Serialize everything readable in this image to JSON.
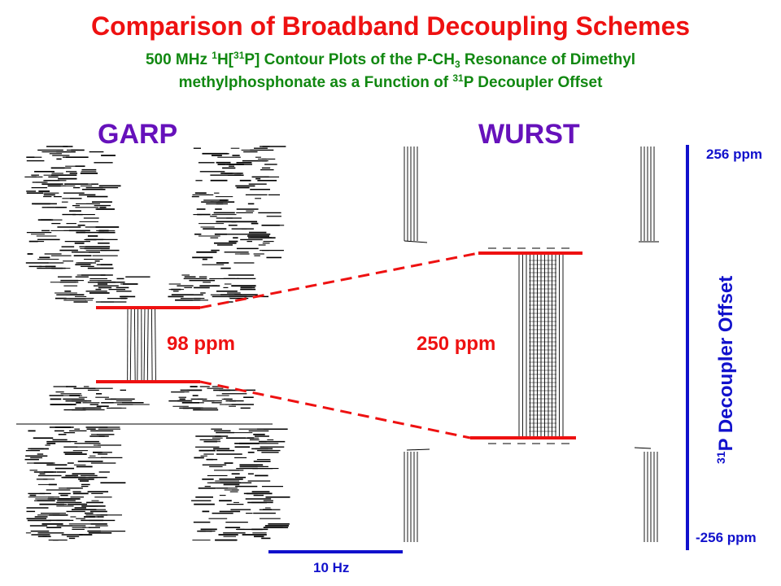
{
  "title": "Comparison of Broadband Decoupling Schemes",
  "subtitle": {
    "line1_pre": "500 MHz ",
    "line1_sup1": "1",
    "line1_mid1": "H[",
    "line1_sup2": "31",
    "line1_mid2": "P] Contour Plots of the P-CH",
    "line1_sub": "3",
    "line1_post": " Resonance of Dimethyl",
    "line2_pre": "methylphosphonate as a Function of ",
    "line2_sup": "31",
    "line2_post": "P Decoupler Offset"
  },
  "panels": {
    "left_label": "GARP",
    "right_label": "WURST",
    "left_bandwidth": "98 ppm",
    "right_bandwidth": "250 ppm"
  },
  "offset_axis": {
    "top_label": "256 ppm",
    "bottom_label": "-256 ppm",
    "title_sup": "31",
    "title_text": "P Decoupler Offset"
  },
  "scale_bar": {
    "label": "10 Hz"
  },
  "colors": {
    "title": "#ee1111",
    "subtitle": "#118811",
    "panel_label": "#6611bb",
    "bandwidth_marker": "#ee1111",
    "axis": "#1111cc",
    "contour": "#000000"
  }
}
